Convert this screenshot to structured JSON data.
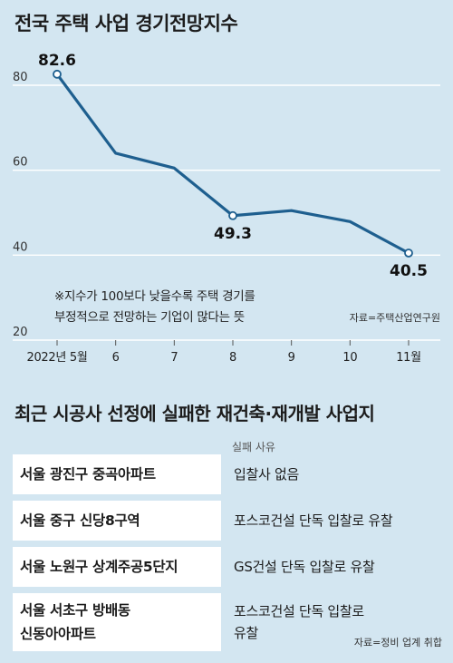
{
  "header": {
    "title": "전국 주택 사업 경기전망지수"
  },
  "chart_data": {
    "type": "line",
    "title": "전국 주택 사업 경기전망지수",
    "categories": [
      "2022년 5월",
      "6",
      "7",
      "8",
      "9",
      "10",
      "11월"
    ],
    "series": [
      {
        "values": [
          82.6,
          64.0,
          60.5,
          49.3,
          50.5,
          47.9,
          40.5
        ]
      }
    ],
    "data_labels": [
      {
        "index": 0,
        "text": "82.6"
      },
      {
        "index": 3,
        "text": "49.3"
      },
      {
        "index": 6,
        "text": "40.5"
      }
    ],
    "yticks": [
      20,
      40,
      60,
      80
    ],
    "ylim": [
      20,
      85
    ],
    "grid": true,
    "note_lines": [
      "※지수가 100보다 낮을수록 주택 경기를",
      "부정적으로 전망하는 기업이 많다는 뜻"
    ],
    "source": "자료=주택산업연구원",
    "colors": {
      "line": "#1e5f8f",
      "grid": "#ffffff",
      "marker_fill": "#ffffff"
    }
  },
  "table": {
    "title": "최근 시공사 선정에 실패한 재건축·재개발 사업지",
    "reason_header": "실패 사유",
    "rows": [
      {
        "name_lines": [
          "서울 광진구 중곡아파트"
        ],
        "reason_lines": [
          "입찰사 없음"
        ]
      },
      {
        "name_lines": [
          "서울 중구 신당8구역"
        ],
        "reason_lines": [
          "포스코건설 단독 입찰로 유찰"
        ]
      },
      {
        "name_lines": [
          "서울 노원구 상계주공5단지"
        ],
        "reason_lines": [
          "GS건설 단독 입찰로 유찰"
        ]
      },
      {
        "name_lines": [
          "서울 서초구 방배동",
          "신동아아파트"
        ],
        "reason_lines": [
          "포스코건설 단독 입찰로",
          "유찰"
        ]
      }
    ],
    "source": "자료=정비 업계 취합"
  }
}
